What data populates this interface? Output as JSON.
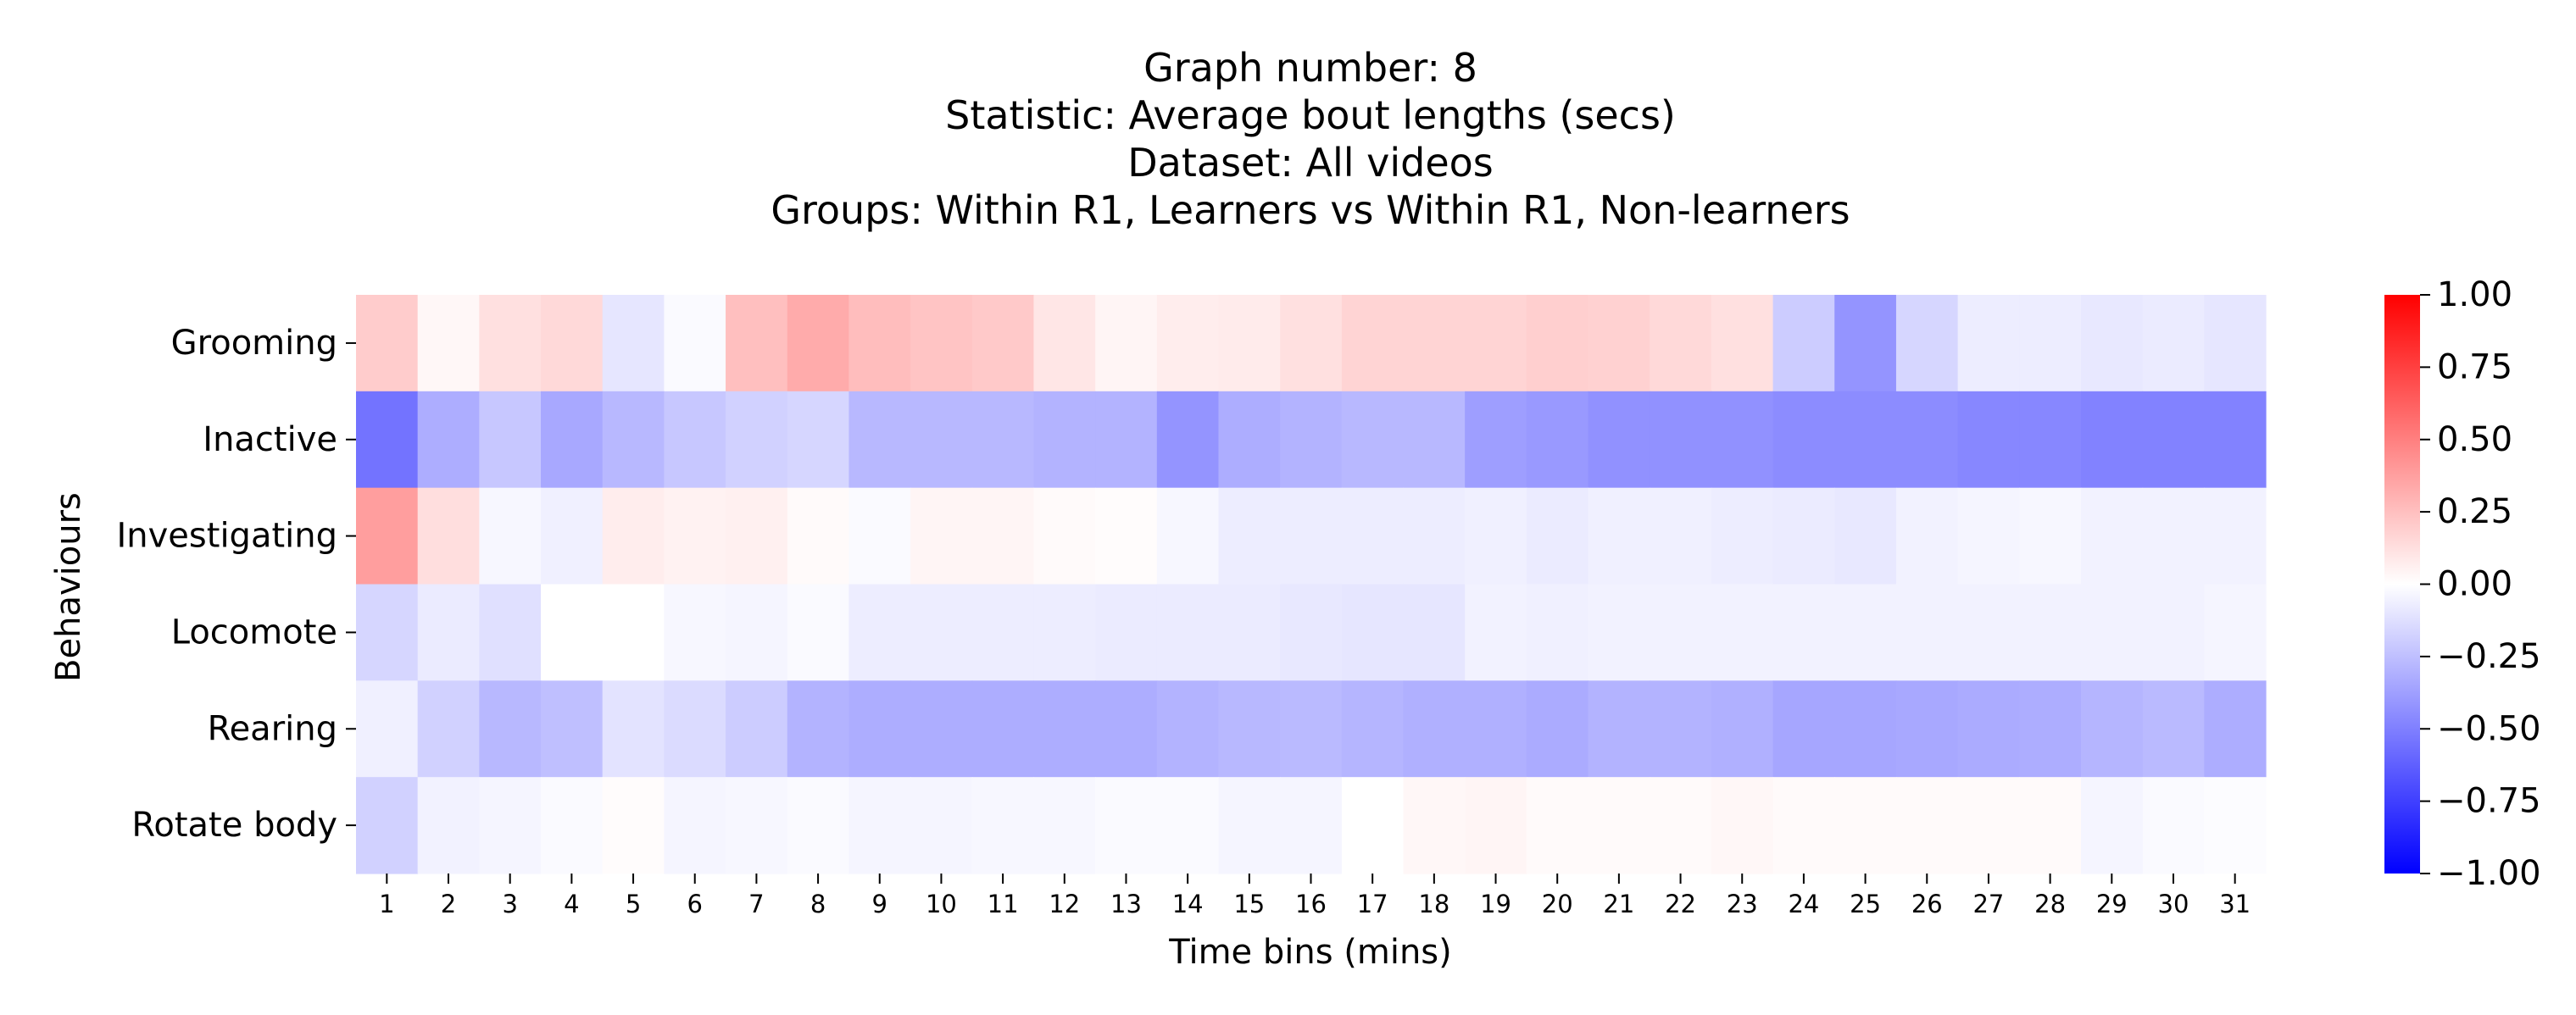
{
  "chart_data": {
    "type": "heatmap",
    "title_lines": [
      "Graph number: 8",
      "Statistic: Average bout lengths (secs)",
      "Dataset: All videos",
      "Groups: Within R1, Learners vs Within R1, Non-learners"
    ],
    "xlabel": "Time bins (mins)",
    "ylabel": "Behaviours",
    "x": [
      "1",
      "2",
      "3",
      "4",
      "5",
      "6",
      "7",
      "8",
      "9",
      "10",
      "11",
      "12",
      "13",
      "14",
      "15",
      "16",
      "17",
      "18",
      "19",
      "20",
      "21",
      "22",
      "23",
      "24",
      "25",
      "26",
      "27",
      "28",
      "29",
      "30",
      "31"
    ],
    "y": [
      "Grooming",
      "Inactive",
      "Investigating",
      "Locomote",
      "Rearing",
      "Rotate body"
    ],
    "values": [
      [
        0.2,
        0.03,
        0.12,
        0.15,
        -0.1,
        -0.02,
        0.25,
        0.33,
        0.26,
        0.23,
        0.21,
        0.1,
        0.04,
        0.07,
        0.08,
        0.12,
        0.17,
        0.17,
        0.17,
        0.19,
        0.18,
        0.15,
        0.12,
        -0.2,
        -0.42,
        -0.16,
        -0.07,
        -0.07,
        -0.09,
        -0.08,
        -0.1
      ],
      [
        -0.55,
        -0.32,
        -0.22,
        -0.34,
        -0.28,
        -0.22,
        -0.18,
        -0.16,
        -0.28,
        -0.28,
        -0.28,
        -0.3,
        -0.3,
        -0.42,
        -0.32,
        -0.3,
        -0.28,
        -0.28,
        -0.38,
        -0.4,
        -0.43,
        -0.43,
        -0.43,
        -0.45,
        -0.45,
        -0.45,
        -0.47,
        -0.47,
        -0.49,
        -0.49,
        -0.49
      ],
      [
        0.38,
        0.13,
        -0.03,
        -0.06,
        0.07,
        0.05,
        0.06,
        0.02,
        -0.02,
        0.04,
        0.04,
        0.02,
        0.01,
        -0.03,
        -0.07,
        -0.07,
        -0.07,
        -0.07,
        -0.06,
        -0.08,
        -0.06,
        -0.06,
        -0.07,
        -0.08,
        -0.09,
        -0.05,
        -0.04,
        -0.03,
        -0.05,
        -0.05,
        -0.05
      ],
      [
        -0.16,
        -0.08,
        -0.12,
        0.0,
        0.0,
        -0.03,
        -0.04,
        -0.02,
        -0.07,
        -0.07,
        -0.07,
        -0.07,
        -0.08,
        -0.08,
        -0.08,
        -0.09,
        -0.1,
        -0.1,
        -0.05,
        -0.06,
        -0.05,
        -0.05,
        -0.05,
        -0.05,
        -0.05,
        -0.05,
        -0.05,
        -0.05,
        -0.05,
        -0.05,
        -0.04
      ],
      [
        -0.06,
        -0.18,
        -0.28,
        -0.25,
        -0.11,
        -0.14,
        -0.2,
        -0.3,
        -0.32,
        -0.32,
        -0.32,
        -0.32,
        -0.32,
        -0.3,
        -0.28,
        -0.27,
        -0.29,
        -0.31,
        -0.31,
        -0.33,
        -0.3,
        -0.3,
        -0.31,
        -0.35,
        -0.35,
        -0.34,
        -0.33,
        -0.32,
        -0.29,
        -0.27,
        -0.32
      ],
      [
        -0.18,
        -0.05,
        -0.04,
        -0.02,
        0.01,
        -0.04,
        -0.03,
        -0.02,
        -0.04,
        -0.04,
        -0.03,
        -0.03,
        -0.02,
        -0.02,
        -0.04,
        -0.04,
        0.0,
        0.03,
        0.04,
        0.02,
        0.02,
        0.02,
        0.03,
        0.02,
        0.02,
        0.02,
        0.02,
        0.02,
        -0.04,
        -0.02,
        -0.01
      ]
    ],
    "colormap": "bwr",
    "vmin": -1.0,
    "vmax": 1.0,
    "colorbar_ticks": [
      "1.00",
      "0.75",
      "0.50",
      "0.25",
      "0.00",
      "−0.25",
      "−0.50",
      "−0.75",
      "−1.00"
    ],
    "colors": {
      "negative": "#0000ff",
      "zero": "#ffffff",
      "positive": "#ff0000"
    }
  }
}
